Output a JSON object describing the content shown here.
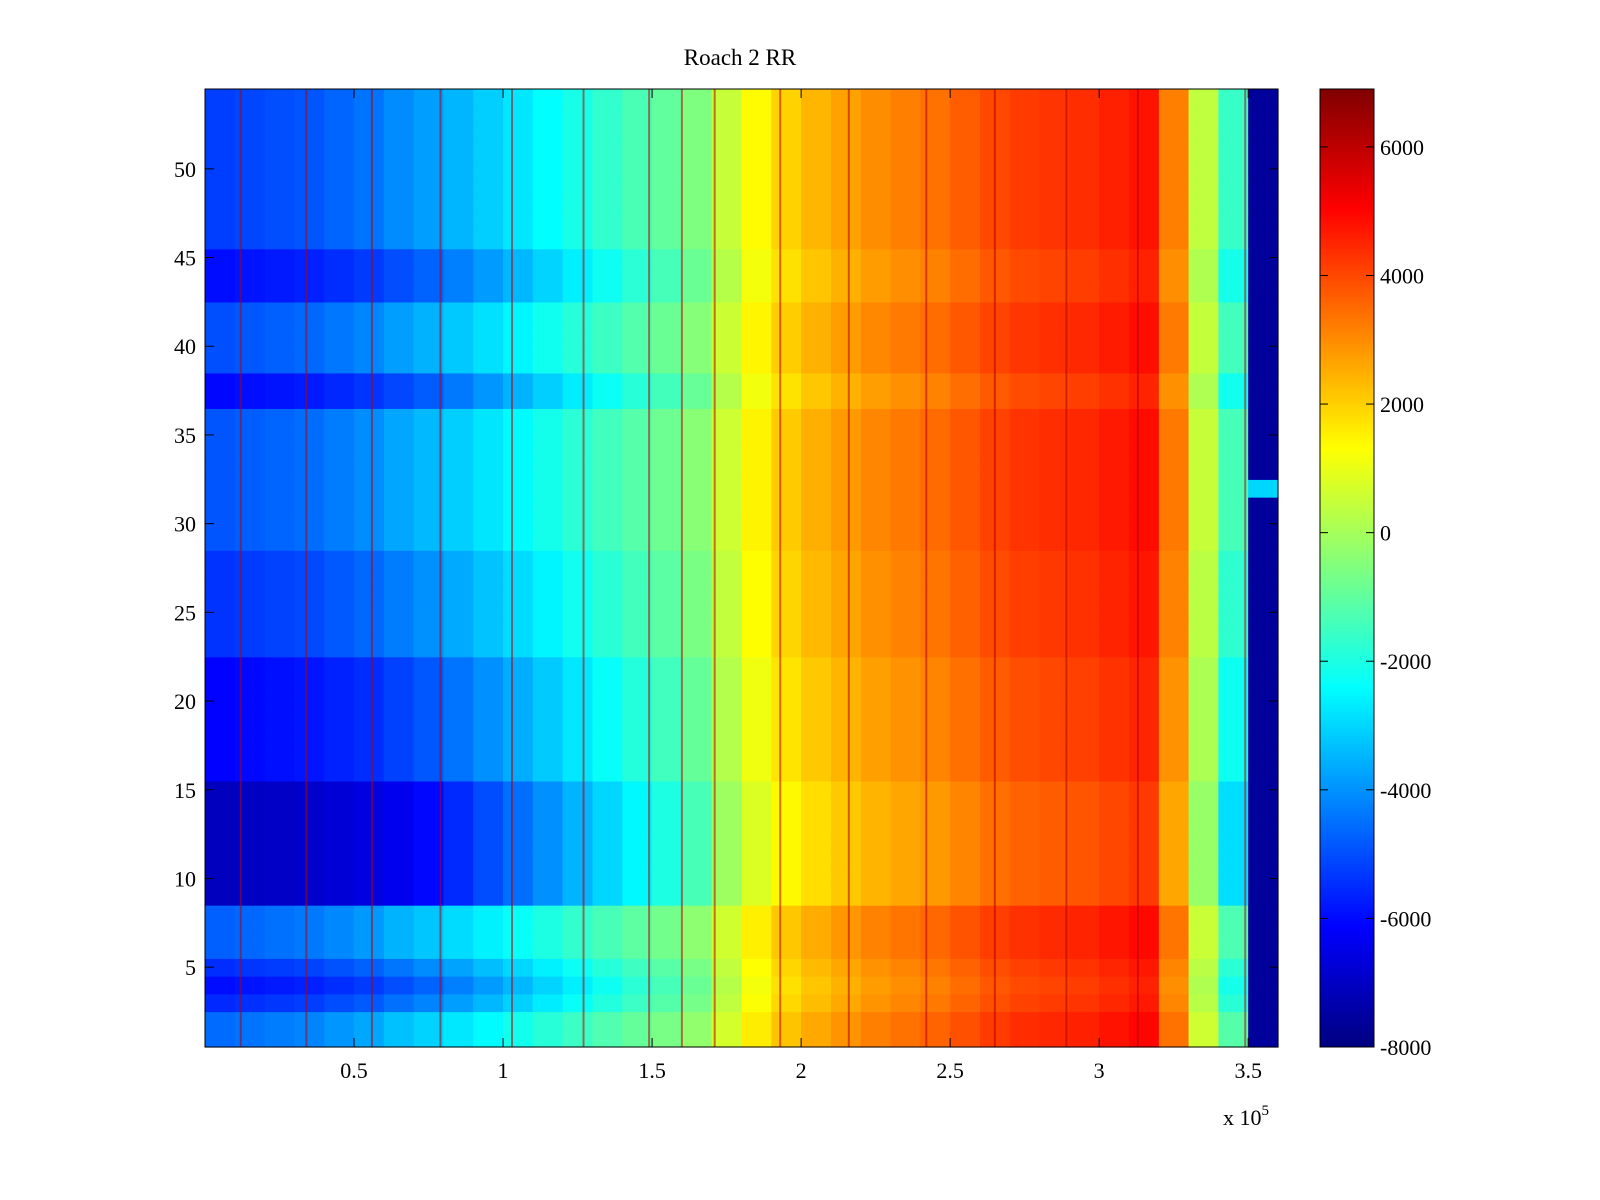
{
  "chart_data": {
    "type": "heatmap",
    "title": "Roach 2 RR",
    "xlabel": "",
    "ylabel": "",
    "x_multiplier_label": "x 10",
    "x_multiplier_exponent": "5",
    "xlim": [
      0,
      3.6
    ],
    "ylim": [
      0.5,
      54.5
    ],
    "x_ticks": [
      {
        "value": 0.5,
        "label": "0.5"
      },
      {
        "value": 1,
        "label": "1"
      },
      {
        "value": 1.5,
        "label": "1.5"
      },
      {
        "value": 2,
        "label": "2"
      },
      {
        "value": 2.5,
        "label": "2.5"
      },
      {
        "value": 3,
        "label": "3"
      },
      {
        "value": 3.5,
        "label": "3.5"
      }
    ],
    "y_ticks": [
      {
        "value": 5,
        "label": "5"
      },
      {
        "value": 10,
        "label": "10"
      },
      {
        "value": 15,
        "label": "15"
      },
      {
        "value": 20,
        "label": "20"
      },
      {
        "value": 25,
        "label": "25"
      },
      {
        "value": 30,
        "label": "30"
      },
      {
        "value": 35,
        "label": "35"
      },
      {
        "value": 40,
        "label": "40"
      },
      {
        "value": 45,
        "label": "45"
      },
      {
        "value": 50,
        "label": "50"
      }
    ],
    "colorbar": {
      "colormap": "jet",
      "range": [
        -8000,
        6900
      ],
      "ticks": [
        {
          "value": 6000,
          "label": "6000"
        },
        {
          "value": 4000,
          "label": "4000"
        },
        {
          "value": 2000,
          "label": "2000"
        },
        {
          "value": 0,
          "label": "0"
        },
        {
          "value": -2000,
          "label": "-2000"
        },
        {
          "value": -4000,
          "label": "-4000"
        },
        {
          "value": -6000,
          "label": "-6000"
        },
        {
          "value": -8000,
          "label": "-8000"
        }
      ]
    },
    "rows": 54,
    "columns_x": [
      0.05,
      0.15,
      0.25,
      0.35,
      0.45,
      0.55,
      0.65,
      0.75,
      0.85,
      0.95,
      1.05,
      1.15,
      1.25,
      1.35,
      1.45,
      1.55,
      1.65,
      1.75,
      1.85,
      1.95,
      2.05,
      2.15,
      2.25,
      2.35,
      2.45,
      2.55,
      2.65,
      2.75,
      2.85,
      2.95,
      3.05,
      3.15,
      3.25,
      3.35,
      3.45,
      3.55
    ],
    "column_trend": [
      -5800,
      -5700,
      -5600,
      -5500,
      -5300,
      -5100,
      -4800,
      -4500,
      -4100,
      -3700,
      -3300,
      -2900,
      -2500,
      -2100,
      -1700,
      -1300,
      -800,
      300,
      1200,
      1800,
      2200,
      2500,
      2800,
      3000,
      3200,
      3500,
      3800,
      4000,
      4100,
      4200,
      4400,
      4600,
      3000,
      200,
      -2000,
      -7500
    ],
    "row_offsets": [
      {
        "rows": [
          1,
          2
        ],
        "offset": 1500
      },
      {
        "rows": [
          3
        ],
        "offset": 300
      },
      {
        "rows": [
          4
        ],
        "offset": -200
      },
      {
        "rows": [
          5
        ],
        "offset": 400
      },
      {
        "rows": [
          6,
          8
        ],
        "offset": 1300
      },
      {
        "rows": [
          9,
          15
        ],
        "offset": -1600
      },
      {
        "rows": [
          16,
          22
        ],
        "offset": -400
      },
      {
        "rows": [
          23,
          28
        ],
        "offset": 500
      },
      {
        "rows": [
          29,
          36
        ],
        "offset": 1100
      },
      {
        "rows": [
          37,
          38
        ],
        "offset": -300
      },
      {
        "rows": [
          39,
          42
        ],
        "offset": 1000
      },
      {
        "rows": [
          43,
          45
        ],
        "offset": -200
      },
      {
        "rows": [
          46,
          54
        ],
        "offset": 700
      }
    ],
    "right_strip": {
      "x_range": [
        3.5,
        3.6
      ],
      "value": -7600,
      "exception_row": 32,
      "exception_value": -3000
    },
    "vertical_streaks": [
      0.12,
      0.34,
      0.56,
      0.79,
      1.03,
      1.27,
      1.49,
      1.6,
      1.71,
      1.93,
      2.16,
      2.42,
      2.65,
      2.89,
      3.13,
      3.49
    ]
  }
}
